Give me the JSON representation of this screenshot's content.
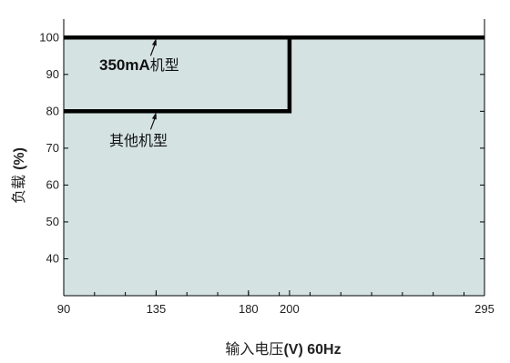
{
  "chart_data": {
    "type": "line",
    "title": "",
    "xlabel": {
      "prefix": "输入电压",
      "bold": "(V) 60Hz"
    },
    "ylabel": {
      "prefix": "负载 ",
      "bold": "(%)"
    },
    "xlim": [
      90,
      295
    ],
    "ylim": [
      30,
      105
    ],
    "x_ticks": [
      90,
      135,
      180,
      200,
      295
    ],
    "y_ticks": [
      40,
      50,
      60,
      70,
      80,
      90,
      100
    ],
    "grid": false,
    "fill_color": "#d4e3e2",
    "line_color": "#000000",
    "series": [
      {
        "name": "350mA机型",
        "points": [
          [
            90,
            100
          ],
          [
            295,
            100
          ]
        ]
      },
      {
        "name": "其他机型",
        "points": [
          [
            90,
            80
          ],
          [
            200,
            80
          ],
          [
            200,
            100
          ],
          [
            295,
            100
          ]
        ]
      }
    ],
    "annotations": [
      {
        "series": "350mA机型",
        "bold": "350mA",
        "text": "机型",
        "arrow_target": [
          135,
          100
        ]
      },
      {
        "series": "其他机型",
        "bold": "",
        "text": "其他机型",
        "arrow_target": [
          135,
          80
        ]
      }
    ]
  }
}
